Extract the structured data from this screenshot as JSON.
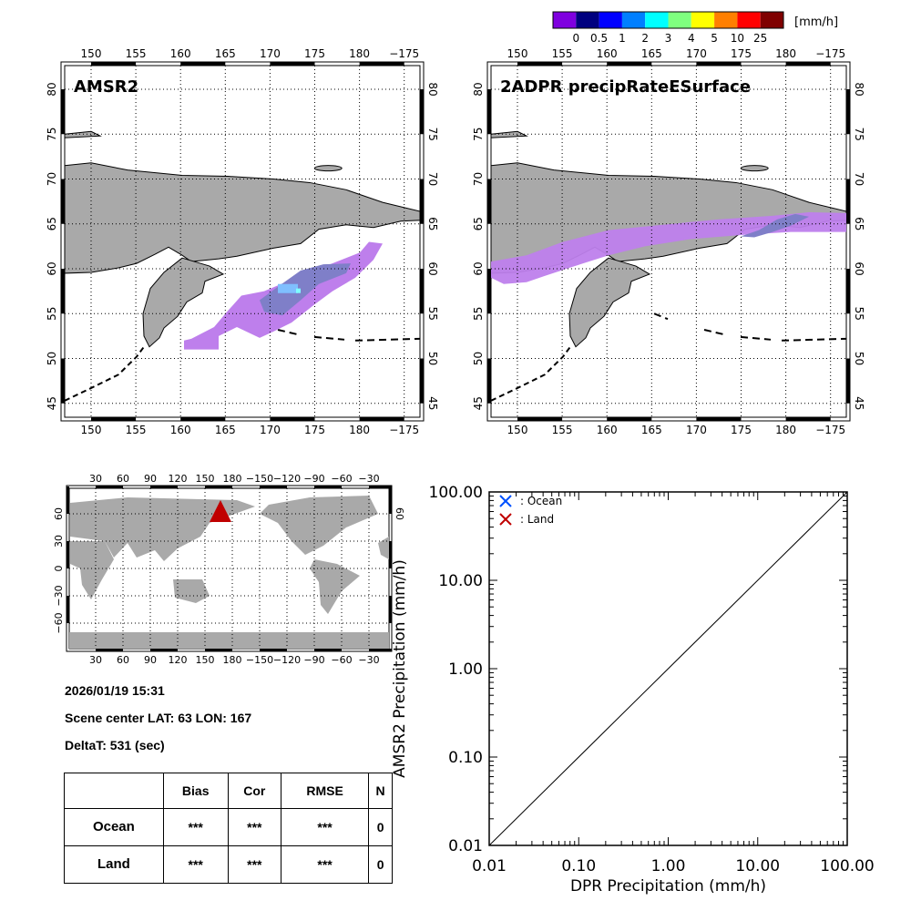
{
  "colorbar": {
    "unit": "[mm/h]",
    "colors": [
      "#7f00df",
      "#00007f",
      "#0000ff",
      "#007fff",
      "#00ffff",
      "#7fff7f",
      "#ffff00",
      "#ff7f00",
      "#ff0000",
      "#7f0000"
    ],
    "labels": [
      "0",
      "0.5",
      "1",
      "2",
      "3",
      "4",
      "5",
      "10",
      "25"
    ]
  },
  "maps": [
    {
      "title": "AMSR2",
      "lon_labels": [
        "150",
        "155",
        "160",
        "165",
        "170",
        "175",
        "180",
        "−175"
      ],
      "lat_labels": [
        "80",
        "75",
        "70",
        "65",
        "60",
        "55",
        "50",
        "45"
      ],
      "rain_colors": {
        "light": "#be7fec",
        "mid": "#7f7fc8",
        "blue": "#7f7fff",
        "cyan": "#7fbfff",
        "bright": "#7fffff"
      }
    },
    {
      "title": "2ADPR precipRateESurface",
      "lon_labels": [
        "150",
        "155",
        "160",
        "165",
        "170",
        "175",
        "180",
        "−175"
      ],
      "lat_labels": [
        "80",
        "75",
        "70",
        "65",
        "60",
        "55",
        "50",
        "45"
      ]
    }
  ],
  "world_map": {
    "lon_labels": [
      "30",
      "60",
      "90",
      "120",
      "150",
      "180",
      "−150",
      "−120",
      "−90",
      "−60",
      "−30"
    ],
    "lat_labels": [
      "60",
      "30",
      "0",
      "−30",
      "−60"
    ],
    "marker": {
      "shape": "triangle",
      "color": "#c00000",
      "lat": 63,
      "lon": 167
    }
  },
  "info": {
    "datetime": "2026/01/19 15:31",
    "scene_center": "Scene center LAT: 63   LON: 167",
    "delta_t": "DeltaT:  531 (sec)"
  },
  "stats_table": {
    "headers": [
      "",
      "Bias",
      "Cor",
      "RMSE",
      "N"
    ],
    "rows": [
      {
        "label": "Ocean",
        "bias": "***",
        "cor": "***",
        "rmse": "***",
        "n": "0"
      },
      {
        "label": "Land",
        "bias": "***",
        "cor": "***",
        "rmse": "***",
        "n": "0"
      }
    ]
  },
  "chart_data": {
    "type": "scatter",
    "title": "",
    "xlabel": "DPR Precipitation (mm/h)",
    "ylabel": "AMSR2 Precipitation (mm/h)",
    "xscale": "log",
    "yscale": "log",
    "xlim": [
      0.01,
      100
    ],
    "ylim": [
      0.01,
      100
    ],
    "xticks": [
      "0.01",
      "0.10",
      "1.00",
      "10.00",
      "100.00"
    ],
    "yticks": [
      "0.01",
      "0.10",
      "1.00",
      "10.00",
      "100.00"
    ],
    "legend": {
      "placement": "top-left",
      "entries": [
        {
          "label": ": Ocean",
          "marker": "x",
          "color": "#0050ff"
        },
        {
          "label": ": Land",
          "marker": "x",
          "color": "#c00000"
        }
      ]
    },
    "series": [
      {
        "name": "Ocean",
        "points": []
      },
      {
        "name": "Land",
        "points": []
      }
    ],
    "reference_line": {
      "name": "1:1 line",
      "x": [
        0.01,
        100
      ],
      "y": [
        0.01,
        100
      ]
    }
  }
}
